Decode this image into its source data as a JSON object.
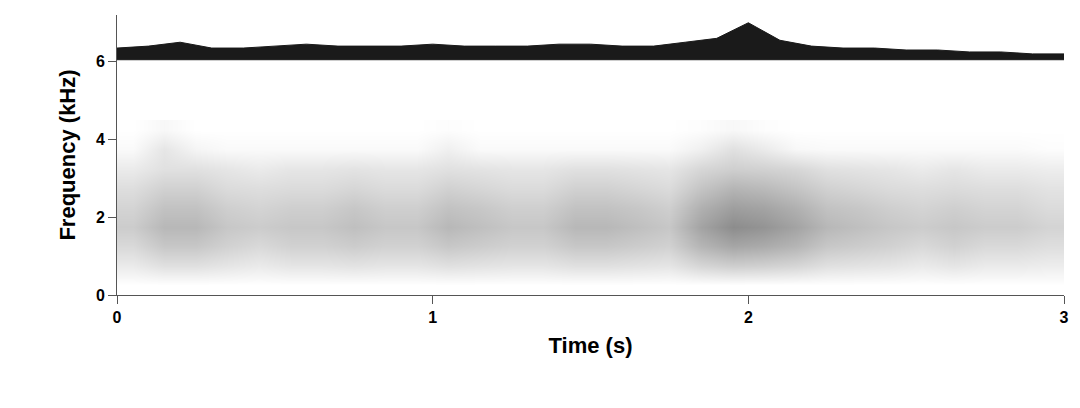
{
  "chart_data": {
    "type": "heatmap",
    "x_label": "Time (s)",
    "y_label": "Frequency (kHz)",
    "xlim": [
      0,
      3
    ],
    "xticks": [
      0,
      1,
      2,
      3
    ],
    "ylim": [
      0,
      7.2
    ],
    "yticks": [
      0,
      2,
      4,
      6
    ],
    "grid": false,
    "color": "#000000",
    "zlim": [
      0,
      1
    ],
    "time": [
      0.05,
      0.15,
      0.25,
      0.35,
      0.45,
      0.55,
      0.65,
      0.75,
      0.85,
      0.95,
      1.05,
      1.15,
      1.25,
      1.35,
      1.45,
      1.55,
      1.65,
      1.75,
      1.85,
      1.95,
      2.05,
      2.15,
      2.25,
      2.35,
      2.45,
      2.55,
      2.65,
      2.75,
      2.85,
      2.95
    ],
    "frequency": [
      0.25,
      0.75,
      1.25,
      1.75,
      2.25,
      2.75,
      3.25,
      3.75,
      4.25
    ],
    "cells": [
      [
        0,
        0,
        0,
        0,
        0,
        0,
        0,
        0,
        0,
        0,
        0,
        0,
        0,
        0,
        0,
        0,
        0,
        0,
        0,
        0,
        0,
        0,
        0,
        0,
        0,
        0,
        0,
        0,
        0,
        0
      ],
      [
        0.08,
        0.12,
        0.12,
        0.1,
        0.08,
        0.1,
        0.1,
        0.11,
        0.1,
        0.1,
        0.12,
        0.11,
        0.1,
        0.1,
        0.12,
        0.12,
        0.11,
        0.1,
        0.16,
        0.19,
        0.18,
        0.16,
        0.12,
        0.11,
        0.1,
        0.08,
        0.1,
        0.08,
        0.08,
        0.07
      ],
      [
        0.15,
        0.22,
        0.22,
        0.18,
        0.15,
        0.18,
        0.18,
        0.2,
        0.18,
        0.18,
        0.22,
        0.2,
        0.18,
        0.18,
        0.22,
        0.22,
        0.2,
        0.18,
        0.29,
        0.35,
        0.33,
        0.29,
        0.22,
        0.2,
        0.18,
        0.15,
        0.18,
        0.15,
        0.15,
        0.13
      ],
      [
        0.2,
        0.28,
        0.28,
        0.22,
        0.2,
        0.22,
        0.22,
        0.25,
        0.22,
        0.22,
        0.28,
        0.25,
        0.22,
        0.22,
        0.28,
        0.28,
        0.25,
        0.22,
        0.36,
        0.45,
        0.42,
        0.36,
        0.28,
        0.25,
        0.22,
        0.2,
        0.22,
        0.2,
        0.2,
        0.17
      ],
      [
        0.17,
        0.24,
        0.24,
        0.19,
        0.17,
        0.19,
        0.19,
        0.22,
        0.19,
        0.19,
        0.24,
        0.22,
        0.19,
        0.19,
        0.24,
        0.24,
        0.22,
        0.19,
        0.31,
        0.38,
        0.36,
        0.31,
        0.24,
        0.22,
        0.19,
        0.17,
        0.19,
        0.17,
        0.17,
        0.14
      ],
      [
        0.13,
        0.18,
        0.18,
        0.14,
        0.13,
        0.14,
        0.14,
        0.16,
        0.14,
        0.14,
        0.18,
        0.16,
        0.14,
        0.14,
        0.18,
        0.18,
        0.16,
        0.14,
        0.23,
        0.29,
        0.27,
        0.23,
        0.18,
        0.16,
        0.14,
        0.13,
        0.14,
        0.13,
        0.13,
        0.11
      ],
      [
        0.08,
        0.12,
        0.12,
        0.1,
        0.08,
        0.1,
        0.1,
        0.11,
        0.1,
        0.1,
        0.12,
        0.11,
        0.1,
        0.1,
        0.12,
        0.12,
        0.11,
        0.1,
        0.16,
        0.19,
        0.18,
        0.16,
        0.12,
        0.11,
        0.1,
        0.08,
        0.1,
        0.08,
        0.08,
        0.07
      ],
      [
        0.02,
        0.1,
        0.04,
        0.02,
        0.02,
        0.02,
        0.02,
        0.02,
        0.02,
        0.02,
        0.06,
        0.02,
        0.02,
        0.02,
        0.02,
        0.02,
        0.02,
        0.02,
        0.06,
        0.12,
        0.08,
        0.03,
        0.02,
        0.02,
        0.02,
        0.02,
        0.02,
        0.02,
        0.02,
        0.01
      ],
      [
        0,
        0.03,
        0,
        0,
        0,
        0,
        0,
        0,
        0,
        0,
        0.01,
        0,
        0,
        0,
        0,
        0,
        0,
        0,
        0.01,
        0.03,
        0.01,
        0,
        0,
        0,
        0,
        0,
        0,
        0,
        0,
        0
      ]
    ],
    "oscillogram": {
      "x": [
        0,
        0.1,
        0.2,
        0.3,
        0.4,
        0.5,
        0.6,
        0.7,
        0.8,
        0.9,
        1.0,
        1.1,
        1.2,
        1.3,
        1.4,
        1.5,
        1.6,
        1.7,
        1.8,
        1.9,
        2.0,
        2.1,
        2.2,
        2.3,
        2.4,
        2.5,
        2.6,
        2.7,
        2.8,
        2.9,
        3.0
      ],
      "baseline": 6.05,
      "values": [
        6.35,
        6.4,
        6.5,
        6.35,
        6.35,
        6.4,
        6.45,
        6.4,
        6.4,
        6.4,
        6.45,
        6.4,
        6.4,
        6.4,
        6.45,
        6.45,
        6.4,
        6.4,
        6.5,
        6.6,
        7.0,
        6.55,
        6.4,
        6.35,
        6.35,
        6.3,
        6.3,
        6.25,
        6.25,
        6.2,
        6.2
      ],
      "color": "#1a1a1a"
    }
  }
}
